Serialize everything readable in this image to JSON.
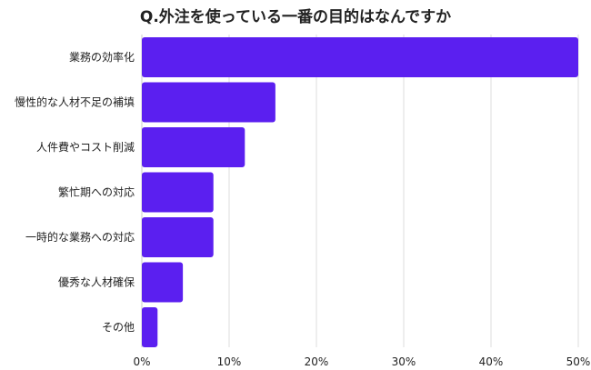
{
  "chart_data": {
    "type": "bar",
    "orientation": "horizontal",
    "title": "Q.外注を使っている一番の目的はなんですか",
    "xlabel": "",
    "ylabel": "",
    "categories": [
      "業務の効率化",
      "慢性的な人材不足の補填",
      "人件費やコスト削減",
      "繁忙期への対応",
      "一時的な業務への対応",
      "優秀な人材確保",
      "その他"
    ],
    "values": [
      50.0,
      15.3,
      11.8,
      8.2,
      8.2,
      4.7,
      1.8
    ],
    "xlim": [
      0,
      50
    ],
    "x_ticks": [
      0,
      10,
      20,
      30,
      40,
      50
    ],
    "x_tick_labels": [
      "0%",
      "10%",
      "20%",
      "30%",
      "40%",
      "50%"
    ],
    "grid": "vertical",
    "bar_color": "#5b1ff0",
    "gridline_color": "#dddddd"
  }
}
